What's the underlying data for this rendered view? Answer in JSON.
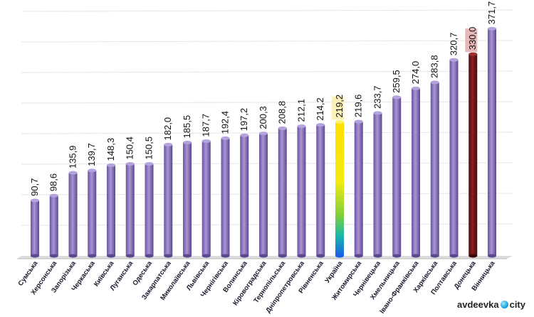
{
  "chart_data": {
    "type": "bar",
    "title": "",
    "xlabel": "",
    "ylabel": "",
    "ylim": [
      0,
      400
    ],
    "grid": true,
    "categories": [
      "Сумська",
      "Херсонська",
      "Запорізька",
      "Черкаська",
      "Київська",
      "Луганська",
      "Одеська",
      "Закарпатська",
      "Миколаївська",
      "Львівська",
      "Чернігівська",
      "Волинська",
      "Кіровоградська",
      "Тернопільська",
      "Дніпропетровська",
      "Рівненська",
      "Україна",
      "Житомирська",
      "Чернівецька",
      "Хмельницька",
      "Івано-Франківська",
      "Харківська",
      "Полтавська",
      "Донецька",
      "Вінницька"
    ],
    "values": [
      90.7,
      98.6,
      135.9,
      139.7,
      148.3,
      150.4,
      150.5,
      182.0,
      185.5,
      187.7,
      192.4,
      197.2,
      200.3,
      208.8,
      212.1,
      214.2,
      219.2,
      219.6,
      233.7,
      259.5,
      274.0,
      283.8,
      320.7,
      330.0,
      371.7
    ],
    "value_labels": [
      "90,7",
      "98,6",
      "135,9",
      "139,7",
      "148,3",
      "150,4",
      "150,5",
      "182,0",
      "185,5",
      "187,7",
      "192,4",
      "197,2",
      "200,3",
      "208,8",
      "212,1",
      "214,2",
      "219,2",
      "219,6",
      "233,7",
      "259,5",
      "274,0",
      "283,8",
      "320,7",
      "330,0",
      "371,7"
    ],
    "highlight": {
      "Україна": "gradient",
      "Донецька": "dark-red"
    },
    "colors": {
      "bar": "#8a72b8",
      "bar_dark": "#5d4790",
      "donetsk": "#6a1414",
      "ukraine_label_bg": "#fbf0b8",
      "donetsk_label_bg": "#e8b8b8",
      "grid": "#e6e6e6"
    }
  },
  "watermark": {
    "left": "avdeevka",
    "right": "city",
    "icon": "globe-dot-icon"
  }
}
